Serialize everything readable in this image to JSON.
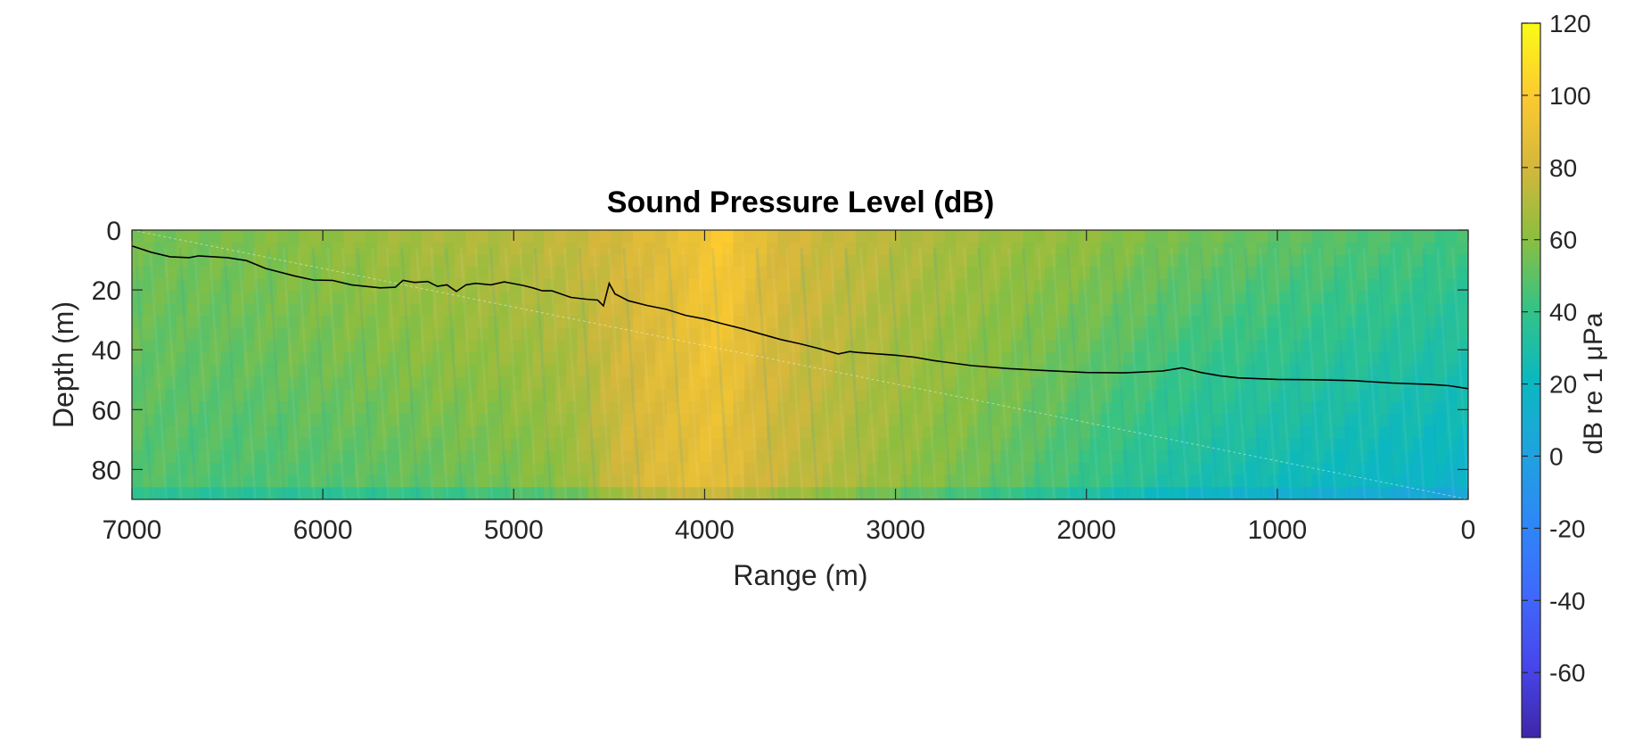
{
  "chart_data": {
    "type": "heatmap",
    "title": "Sound Pressure Level (dB)",
    "xlabel": "Range (m)",
    "ylabel": "Depth (m)",
    "xlim": [
      7000,
      0
    ],
    "ylim": [
      90,
      0
    ],
    "x_reversed": true,
    "y_reversed": true,
    "x_ticks": [
      7000,
      6000,
      5000,
      4000,
      3000,
      2000,
      1000,
      0
    ],
    "x_tick_labels": [
      "7000",
      "6000",
      "5000",
      "4000",
      "3000",
      "2000",
      "1000",
      "0"
    ],
    "y_ticks": [
      0,
      20,
      40,
      60,
      80
    ],
    "y_tick_labels": [
      "0",
      "20",
      "40",
      "60",
      "80"
    ],
    "colormap": "parula",
    "colorbar": {
      "label": "dB re 1 μPa",
      "range": [
        -78,
        120
      ],
      "ticks": [
        120,
        100,
        80,
        60,
        40,
        20,
        0,
        -20,
        -40,
        -60
      ],
      "tick_labels": [
        "120",
        "100",
        "80",
        "60",
        "40",
        "20",
        "0",
        "-20",
        "-40",
        "-60"
      ]
    },
    "field_profile": {
      "range_m": [
        7000,
        6500,
        6000,
        5500,
        5000,
        4700,
        4400,
        4150,
        4000,
        3900,
        3800,
        3600,
        3300,
        3000,
        2500,
        2000,
        1500,
        1000,
        500,
        0
      ],
      "surface_db": [
        55,
        57,
        62,
        68,
        72,
        76,
        82,
        88,
        95,
        100,
        92,
        82,
        76,
        72,
        66,
        62,
        56,
        52,
        48,
        44
      ],
      "bottom_db": [
        48,
        45,
        47,
        50,
        55,
        62,
        80,
        86,
        88,
        86,
        82,
        76,
        70,
        62,
        52,
        40,
        28,
        22,
        18,
        14
      ]
    },
    "bathymetry_line": {
      "range_m": [
        7000,
        6900,
        6800,
        6700,
        6650,
        6500,
        6400,
        6300,
        6150,
        6050,
        5950,
        5850,
        5700,
        5620,
        5580,
        5520,
        5450,
        5400,
        5350,
        5300,
        5250,
        5200,
        5120,
        5050,
        4950,
        4900,
        4850,
        4800,
        4700,
        4620,
        4560,
        4530,
        4500,
        4470,
        4400,
        4300,
        4200,
        4100,
        4000,
        3900,
        3800,
        3700,
        3600,
        3500,
        3400,
        3300,
        3240,
        3200,
        3000,
        2900,
        2800,
        2600,
        2400,
        2200,
        2000,
        1800,
        1600,
        1500,
        1400,
        1300,
        1200,
        1000,
        800,
        600,
        400,
        200,
        100,
        0
      ],
      "depth_m": [
        5.3,
        7.4,
        8.9,
        9.2,
        8.6,
        9.2,
        10.2,
        12.8,
        15.3,
        16.7,
        16.8,
        18.3,
        19.3,
        19.1,
        16.8,
        17.5,
        17.2,
        18.8,
        18.3,
        20.5,
        18.3,
        17.8,
        18.3,
        17.3,
        18.5,
        19.3,
        20.3,
        20.3,
        22.5,
        23.1,
        23.4,
        25.3,
        17.8,
        21.3,
        23.6,
        25.2,
        26.5,
        28.5,
        29.7,
        31.4,
        33.0,
        34.8,
        36.6,
        38.0,
        39.6,
        41.4,
        40.6,
        40.9,
        41.8,
        42.5,
        43.6,
        45.3,
        46.3,
        47.0,
        47.6,
        47.7,
        47.1,
        46.0,
        47.6,
        48.7,
        49.4,
        49.9,
        50.0,
        50.3,
        51.1,
        51.6,
        52.0,
        53.0
      ]
    }
  }
}
